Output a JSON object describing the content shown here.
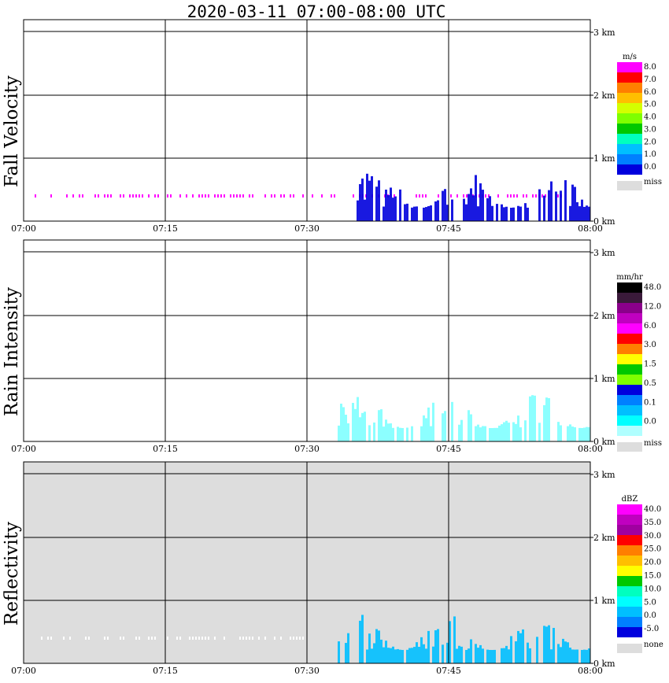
{
  "title": "2020-03-11   07:00-08:00 UTC",
  "chart_data": [
    {
      "type": "heatmap",
      "title": "Fall Velocity",
      "ylabel": "Fall Velocity",
      "x_ticks": [
        "07:00",
        "07:15",
        "07:30",
        "07:45",
        "08:00"
      ],
      "y_ticks": [
        "0 km",
        "1 km",
        "2 km",
        "3 km"
      ],
      "xlim": [
        "07:00",
        "08:00"
      ],
      "ylim_km": [
        0,
        3.15
      ],
      "grid": true,
      "background": "#ffffff",
      "legend": {
        "placement": "right",
        "unit": "m/s",
        "colors": [
          "#ff00ff",
          "#ff0000",
          "#ff7f00",
          "#ffbf00",
          "#d4ff00",
          "#7fff00",
          "#00c800",
          "#00ffbf",
          "#00bfff",
          "#0080ff",
          "#0000dd"
        ],
        "labels": [
          "8.0",
          "7.0",
          "6.0",
          "5.0",
          "4.0",
          "3.0",
          "2.0",
          "1.0",
          "0.0"
        ],
        "miss_label": "miss"
      },
      "features": [
        {
          "kind": "dots",
          "color": "#ff00ff",
          "time_range": [
            "07:00",
            "07:57"
          ],
          "height_km": 0.4
        },
        {
          "kind": "precipitation",
          "color": "#0000dd",
          "time_range": [
            "07:35",
            "08:00"
          ],
          "height_range_km": [
            0.0,
            0.85
          ]
        }
      ]
    },
    {
      "type": "heatmap",
      "title": "Rain Intensity",
      "ylabel": "Rain Intensity",
      "x_ticks": [
        "07:00",
        "07:15",
        "07:30",
        "07:45",
        "08:00"
      ],
      "y_ticks": [
        "0 km",
        "1 km",
        "2 km",
        "3 km"
      ],
      "xlim": [
        "07:00",
        "08:00"
      ],
      "ylim_km": [
        0,
        3.15
      ],
      "grid": true,
      "background": "#ffffff",
      "legend": {
        "placement": "right",
        "unit": "mm/hr",
        "colors": [
          "#000000",
          "#3a1a3a",
          "#8a008a",
          "#c000c0",
          "#ff00ff",
          "#ff0000",
          "#ff7f00",
          "#ffff00",
          "#00c800",
          "#7fff00",
          "#0000dd",
          "#0080ff",
          "#00bfff",
          "#00ffff",
          "#b0ffff"
        ],
        "labels": [
          "48.0",
          "12.0",
          "6.0",
          "3.0",
          "1.5",
          "0.5",
          "0.1",
          "0.0"
        ],
        "miss_label": "miss"
      },
      "features": [
        {
          "kind": "precipitation",
          "color": "#80ffff",
          "time_range": [
            "07:33",
            "08:00"
          ],
          "height_range_km": [
            0.0,
            0.85
          ]
        }
      ]
    },
    {
      "type": "heatmap",
      "title": "Reflectivity",
      "ylabel": "Reflectivity",
      "x_ticks": [
        "07:00",
        "07:15",
        "07:30",
        "07:45",
        "08:00"
      ],
      "y_ticks": [
        "0 km",
        "1 km",
        "2 km",
        "3 km"
      ],
      "xlim": [
        "07:00",
        "08:00"
      ],
      "ylim_km": [
        0,
        3.15
      ],
      "grid": true,
      "background": "#dddddd",
      "legend": {
        "placement": "right",
        "unit": "dBZ",
        "colors": [
          "#ff00ff",
          "#c000c0",
          "#a000a0",
          "#ff0000",
          "#ff7f00",
          "#ffbf00",
          "#ffff00",
          "#00c800",
          "#00ffbf",
          "#00ffff",
          "#00bfff",
          "#0080ff",
          "#0000dd"
        ],
        "labels": [
          "40.0",
          "35.0",
          "30.0",
          "25.0",
          "20.0",
          "15.0",
          "10.0",
          "5.0",
          "0.0",
          "-5.0"
        ],
        "miss_label": "none"
      },
      "features": [
        {
          "kind": "dots",
          "color": "#ffffff",
          "time_range": [
            "07:00",
            "07:30"
          ],
          "height_km": 0.4
        },
        {
          "kind": "precipitation",
          "color": "#00bfff",
          "time_range": [
            "07:33",
            "08:00"
          ],
          "height_range_km": [
            0.0,
            0.85
          ]
        }
      ]
    }
  ]
}
